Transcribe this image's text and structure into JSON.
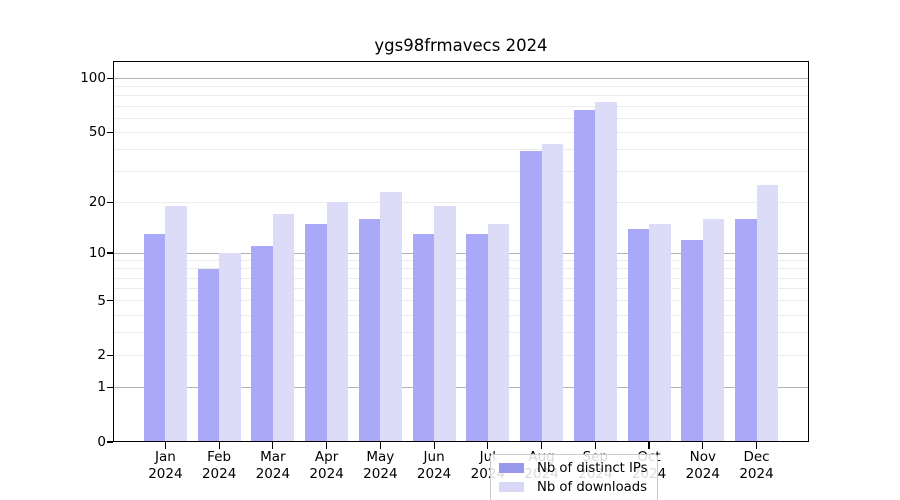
{
  "chart": {
    "title": "ygs98frmavecs 2024",
    "legend": {
      "items": [
        {
          "label": "Nb of distinct IPs",
          "swatch_color": "#9898ee"
        },
        {
          "label": "Nb of downloads",
          "swatch_color": "#d8d8f5"
        }
      ]
    },
    "y_axis": {
      "ticks": [
        {
          "label": "0",
          "value": 0
        },
        {
          "label": "1",
          "value": 1
        },
        {
          "label": "2",
          "value": 2
        },
        {
          "label": "5",
          "value": 5
        },
        {
          "label": "10",
          "value": 10
        },
        {
          "label": "20",
          "value": 20
        },
        {
          "label": "50",
          "value": 50
        },
        {
          "label": "100",
          "value": 100
        }
      ]
    },
    "x_axis": {
      "months": [
        "Jan",
        "Feb",
        "Mar",
        "Apr",
        "May",
        "Jun",
        "Jul",
        "Aug",
        "Sep",
        "Oct",
        "Nov",
        "Dec"
      ],
      "year": "2024"
    }
  },
  "chart_data": {
    "type": "bar",
    "title": "ygs98frmavecs 2024",
    "categories": [
      "Jan 2024",
      "Feb 2024",
      "Mar 2024",
      "Apr 2024",
      "May 2024",
      "Jun 2024",
      "Jul 2024",
      "Aug 2024",
      "Sep 2024",
      "Oct 2024",
      "Nov 2024",
      "Dec 2024"
    ],
    "series": [
      {
        "name": "Nb of distinct IPs",
        "color": "#a9a9f8",
        "values": [
          13,
          8,
          11,
          15,
          16,
          13,
          13,
          39,
          67,
          14,
          12,
          16
        ]
      },
      {
        "name": "Nb of downloads",
        "color": "#dcdcf9",
        "values": [
          19,
          10,
          17,
          20,
          23,
          19,
          15,
          43,
          74,
          15,
          16,
          25
        ]
      }
    ],
    "yscale": "log(1+x)",
    "ylim": [
      0,
      125
    ],
    "ytick_values": [
      0,
      1,
      2,
      5,
      10,
      20,
      50,
      100
    ],
    "grid": true,
    "legend_position": "lower center inside"
  }
}
